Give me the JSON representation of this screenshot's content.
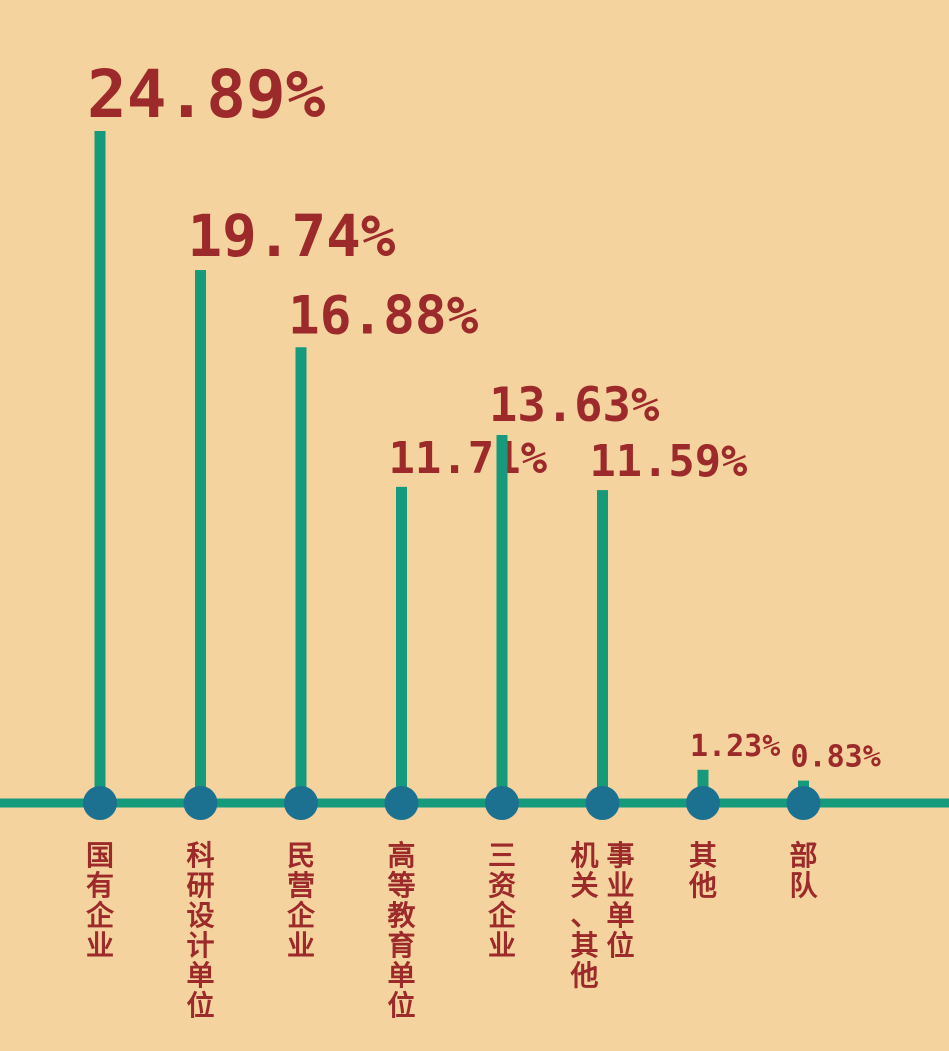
{
  "chart_data": {
    "type": "bar",
    "title": "",
    "xlabel": "",
    "ylabel": "",
    "categories": [
      "国有企业",
      "科研设计单位",
      "民营企业",
      "高等教育单位",
      "三资企业",
      "机关、其他事业单位",
      "其他",
      "部队"
    ],
    "category_lines": [
      [
        "国有企业"
      ],
      [
        "科研设计单位"
      ],
      [
        "民营企业"
      ],
      [
        "高等教育单位"
      ],
      [
        "三资企业"
      ],
      [
        "机关、其他",
        "事业单位"
      ],
      [
        "其他"
      ],
      [
        "部队"
      ]
    ],
    "values": [
      24.89,
      19.74,
      16.88,
      11.71,
      13.63,
      11.59,
      1.23,
      0.83
    ],
    "value_labels": [
      "24.89%",
      "19.74%",
      "16.88%",
      "11.71%",
      "13.63%",
      "11.59%",
      "1.23%",
      "0.83%"
    ],
    "ylim": [
      0,
      24.89
    ],
    "grid": false,
    "legend": "none",
    "colors": {
      "background": "#f5d39f",
      "bar": "#159a7c",
      "marker": "#1d7190",
      "label": "#9c2a2a"
    }
  }
}
